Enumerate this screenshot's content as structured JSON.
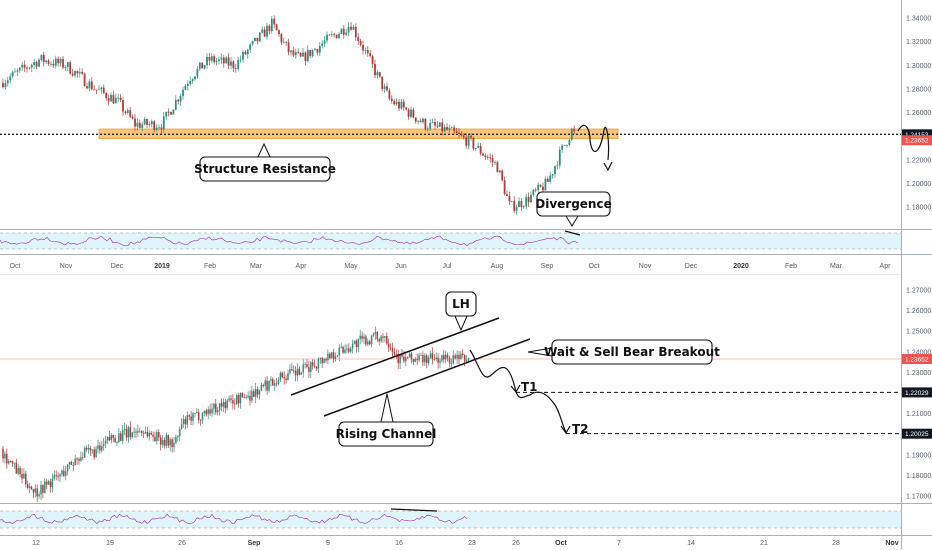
{
  "chart_data": [
    {
      "type": "candlestick",
      "title": "",
      "timeframe": "daily",
      "ylim": [
        1.16,
        1.345
      ],
      "yticks": [
        "1.34000",
        "1.32000",
        "1.30000",
        "1.28000",
        "1.26000",
        "1.24000",
        "1.22000",
        "1.20000",
        "1.18000"
      ],
      "xticks": [
        {
          "label": "Oct",
          "bold": false
        },
        {
          "label": "Nov",
          "bold": false
        },
        {
          "label": "Dec",
          "bold": false
        },
        {
          "label": "2019",
          "bold": true
        },
        {
          "label": "Feb",
          "bold": false
        },
        {
          "label": "Mar",
          "bold": false
        },
        {
          "label": "Apr",
          "bold": false
        },
        {
          "label": "May",
          "bold": false
        },
        {
          "label": "Jun",
          "bold": false
        },
        {
          "label": "Jul",
          "bold": false
        },
        {
          "label": "Aug",
          "bold": false
        },
        {
          "label": "Sep",
          "bold": false
        },
        {
          "label": "Oct",
          "bold": false
        },
        {
          "label": "Nov",
          "bold": false
        },
        {
          "label": "Dec",
          "bold": false
        },
        {
          "label": "2020",
          "bold": true
        },
        {
          "label": "Feb",
          "bold": false
        },
        {
          "label": "Mar",
          "bold": false
        },
        {
          "label": "Apr",
          "bold": false
        }
      ],
      "price_path": [
        {
          "x": "Oct",
          "y": 1.285
        },
        {
          "x": "Oct 20",
          "y": 1.305
        },
        {
          "x": "Nov 1",
          "y": 1.3
        },
        {
          "x": "Nov 12",
          "y": 1.28
        },
        {
          "x": "Dec 1",
          "y": 1.27
        },
        {
          "x": "Dec 14",
          "y": 1.25
        },
        {
          "x": "2019",
          "y": 1.25
        },
        {
          "x": "Jan 20",
          "y": 1.29
        },
        {
          "x": "Feb",
          "y": 1.305
        },
        {
          "x": "Feb 20",
          "y": 1.3
        },
        {
          "x": "Mar",
          "y": 1.32
        },
        {
          "x": "Mar 12",
          "y": 1.335
        },
        {
          "x": "Mar 25",
          "y": 1.31
        },
        {
          "x": "Apr",
          "y": 1.305
        },
        {
          "x": "Apr 20",
          "y": 1.32
        },
        {
          "x": "May",
          "y": 1.335
        },
        {
          "x": "May 10",
          "y": 1.3
        },
        {
          "x": "May 25",
          "y": 1.27
        },
        {
          "x": "Jun",
          "y": 1.265
        },
        {
          "x": "Jun 20",
          "y": 1.25
        },
        {
          "x": "Jul",
          "y": 1.245
        },
        {
          "x": "Jul 20",
          "y": 1.235
        },
        {
          "x": "Aug",
          "y": 1.215
        },
        {
          "x": "Aug 10",
          "y": 1.18
        },
        {
          "x": "Aug 20",
          "y": 1.185
        },
        {
          "x": "Sep",
          "y": 1.2
        },
        {
          "x": "Sep 12",
          "y": 1.225
        },
        {
          "x": "Sep 20",
          "y": 1.245
        },
        {
          "x": "Sep 25",
          "y": 1.2365
        }
      ],
      "resistance_zone": [
        1.238,
        1.246
      ],
      "horizontal_line": 1.24153,
      "price_labels": [
        {
          "value": "1.24153",
          "style": "dark"
        },
        {
          "value": "1.23652",
          "style": "red"
        }
      ],
      "annotations": [
        "Structure Resistance",
        "Divergence"
      ]
    },
    {
      "type": "candlestick",
      "title": "",
      "timeframe": "4h",
      "ylim": [
        1.163,
        1.275
      ],
      "yticks": [
        "1.27000",
        "1.26000",
        "1.25000",
        "1.24000",
        "1.23000",
        "1.22000",
        "1.21000",
        "1.20000",
        "1.19000",
        "1.18000",
        "1.17000"
      ],
      "xticks": [
        {
          "label": "12",
          "bold": false
        },
        {
          "label": "19",
          "bold": false
        },
        {
          "label": "26",
          "bold": false
        },
        {
          "label": "Sep",
          "bold": true
        },
        {
          "label": "9",
          "bold": false
        },
        {
          "label": "16",
          "bold": false
        },
        {
          "label": "23",
          "bold": false
        },
        {
          "label": "26",
          "bold": false
        },
        {
          "label": "Oct",
          "bold": true
        },
        {
          "label": "7",
          "bold": false
        },
        {
          "label": "14",
          "bold": false
        },
        {
          "label": "21",
          "bold": false
        },
        {
          "label": "28",
          "bold": false
        },
        {
          "label": "Nov",
          "bold": true
        }
      ],
      "price_path": [
        {
          "x": "Aug 9",
          "y": 1.193
        },
        {
          "x": "Aug 12",
          "y": 1.18
        },
        {
          "x": "Aug 15",
          "y": 1.172
        },
        {
          "x": "Aug 19",
          "y": 1.18
        },
        {
          "x": "Aug 21",
          "y": 1.19
        },
        {
          "x": "Aug 23",
          "y": 1.192
        },
        {
          "x": "Aug 26",
          "y": 1.198
        },
        {
          "x": "Aug 29",
          "y": 1.202
        },
        {
          "x": "Sep 2",
          "y": 1.195
        },
        {
          "x": "Sep 4",
          "y": 1.205
        },
        {
          "x": "Sep 6",
          "y": 1.212
        },
        {
          "x": "Sep 9",
          "y": 1.22
        },
        {
          "x": "Sep 12",
          "y": 1.228
        },
        {
          "x": "Sep 16",
          "y": 1.23
        },
        {
          "x": "Sep 18",
          "y": 1.238
        },
        {
          "x": "Sep 20",
          "y": 1.245
        },
        {
          "x": "Sep 22",
          "y": 1.248
        },
        {
          "x": "Sep 23",
          "y": 1.2365
        }
      ],
      "channel": {
        "upper": [
          [
            1.224,
            "Sep 6"
          ],
          [
            1.272,
            "Sep 24"
          ]
        ],
        "lower": [
          [
            1.205,
            "Sep 9"
          ],
          [
            1.252,
            "Sep 28"
          ]
        ]
      },
      "targets": [
        {
          "name": "T1",
          "value": "1.22029"
        },
        {
          "name": "T2",
          "value": "1.20025"
        }
      ],
      "price_labels": [
        {
          "value": "1.23652",
          "style": "red"
        }
      ],
      "annotations": [
        "LH",
        "Wait & Sell Bear Breakout",
        "Rising Channel"
      ]
    }
  ],
  "labels": {
    "structure_resistance": "Structure Resistance",
    "divergence": "Divergence",
    "lh": "LH",
    "wait_sell": "Wait & Sell Bear Breakout",
    "rising_channel": "Rising Channel",
    "t1": "T1",
    "t2": "T2"
  },
  "colors": {
    "up": "#2f8f7f",
    "down": "#b03a3a",
    "zone": "#f7b44f",
    "rsi_band": "#dff5fb",
    "rsi_line": "#9c27b0",
    "price_red": "#ef5350",
    "price_dark": "#131722"
  }
}
